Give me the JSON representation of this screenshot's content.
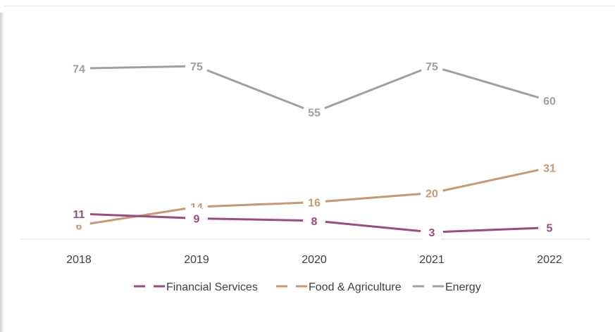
{
  "chart_data": {
    "type": "line",
    "title": "",
    "xlabel": "",
    "ylabel": "",
    "x": [
      "2018",
      "2019",
      "2020",
      "2021",
      "2022"
    ],
    "ylim": [
      0,
      80
    ],
    "grid": false,
    "legend": "bottom",
    "series": [
      {
        "name": "Financial Services",
        "values": [
          11,
          9,
          8,
          3,
          5
        ],
        "color": "#9c4a82"
      },
      {
        "name": "Food & Agriculture",
        "values": [
          6,
          14,
          16,
          20,
          31
        ],
        "color": "#c89872"
      },
      {
        "name": "Energy",
        "values": [
          74,
          75,
          55,
          75,
          60
        ],
        "color": "#a0a0a0"
      }
    ]
  }
}
